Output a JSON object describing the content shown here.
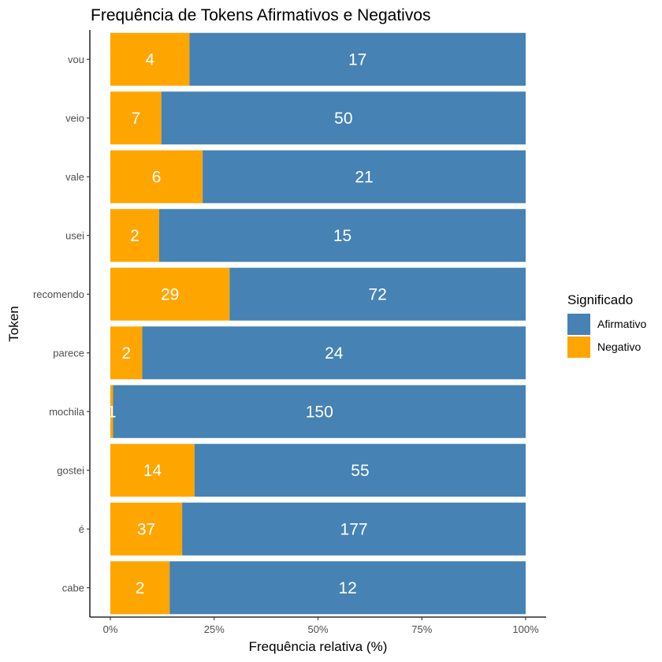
{
  "chart_data": {
    "type": "bar",
    "orientation": "horizontal",
    "stacked": "percent",
    "title": "Frequência de Tokens Afirmativos e Negativos",
    "xlabel": "Frequência relativa (%)",
    "ylabel": "Token",
    "xlim": [
      0,
      100
    ],
    "xticks": [
      "0%",
      "25%",
      "50%",
      "75%",
      "100%"
    ],
    "grid": false,
    "legend": {
      "title": "Significado",
      "position": "right"
    },
    "categories": [
      "vou",
      "veio",
      "vale",
      "usei",
      "recomendo",
      "parece",
      "mochila",
      "gostei",
      "é",
      "cabe"
    ],
    "series": [
      {
        "name": "Negativo",
        "color": "#FFA500",
        "values": [
          4,
          7,
          6,
          2,
          29,
          2,
          1,
          14,
          37,
          2
        ]
      },
      {
        "name": "Afirmativo",
        "color": "#4682B4",
        "values": [
          17,
          50,
          21,
          15,
          72,
          24,
          150,
          55,
          177,
          12
        ]
      }
    ]
  }
}
